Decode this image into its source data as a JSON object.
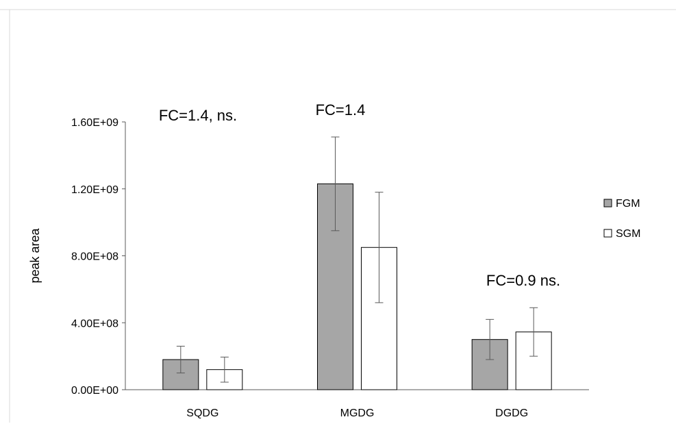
{
  "chart_data": {
    "type": "bar",
    "categories": [
      "SQDG",
      "MGDG",
      "DGDG"
    ],
    "series": [
      {
        "name": "FGM",
        "values": [
          180000000,
          1230000000,
          300000000
        ],
        "errors": [
          80000000,
          280000000,
          120000000
        ],
        "color": "#a6a6a6"
      },
      {
        "name": "SGM",
        "values": [
          120000000,
          850000000,
          345000000
        ],
        "errors": [
          75000000,
          330000000,
          145000000
        ],
        "color": "#ffffff"
      }
    ],
    "ylabel": "peak area",
    "ylim": [
      0,
      1600000000
    ],
    "yticks": [
      0,
      400000000,
      800000000,
      1200000000,
      1600000000
    ],
    "ytick_labels": [
      "0.00E+00",
      "4.00E+08",
      "8.00E+08",
      "1.20E+09",
      "1.60E+09"
    ],
    "annotations": [
      {
        "category": "SQDG",
        "text": "FC=1.4, ns."
      },
      {
        "category": "MGDG",
        "text": "FC=1.4"
      },
      {
        "category": "DGDG",
        "text": "FC=0.9 ns."
      }
    ],
    "legend_position": "right",
    "grid": false
  }
}
